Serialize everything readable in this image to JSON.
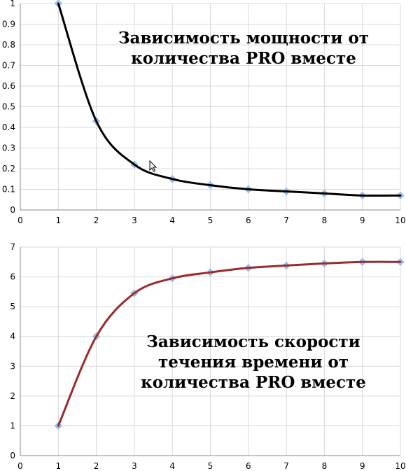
{
  "chart_data": [
    {
      "type": "scatter",
      "title_lines": [
        "Зависимость мощности от",
        "количества PRO вместе"
      ],
      "xlabel": "",
      "ylabel": "",
      "xlim": [
        0,
        10
      ],
      "ylim": [
        0,
        1
      ],
      "grid": true,
      "x_ticks": [
        "0",
        "1",
        "2",
        "3",
        "4",
        "5",
        "6",
        "7",
        "8",
        "9",
        "10"
      ],
      "y_ticks": [
        "0",
        "0.1",
        "0.2",
        "0.3",
        "0.4",
        "0.5",
        "0.6",
        "0.7",
        "0.8",
        "0.9",
        "1"
      ],
      "series": [
        {
          "x": [
            1,
            2,
            3,
            4,
            5,
            6,
            7,
            8,
            9,
            10
          ],
          "y": [
            1.0,
            0.43,
            0.22,
            0.15,
            0.12,
            0.1,
            0.09,
            0.08,
            0.07,
            0.07
          ],
          "marker": "diamond",
          "marker_color": "#9fc5ee",
          "line_color": "#000000",
          "smooth": true
        }
      ]
    },
    {
      "type": "scatter",
      "title_lines": [
        "Зависимость скорости",
        "течения времени от",
        "количества PRO вместе"
      ],
      "xlabel": "",
      "ylabel": "",
      "xlim": [
        0,
        10
      ],
      "ylim": [
        0,
        7
      ],
      "grid": true,
      "x_ticks": [
        "0",
        "1",
        "2",
        "3",
        "4",
        "5",
        "6",
        "7",
        "8",
        "9",
        "10"
      ],
      "y_ticks": [
        "0",
        "1",
        "2",
        "3",
        "4",
        "5",
        "6",
        "7"
      ],
      "series": [
        {
          "x": [
            1,
            2,
            3,
            4,
            5,
            6,
            7,
            8,
            9,
            10
          ],
          "y": [
            1.0,
            4.0,
            5.45,
            5.95,
            6.15,
            6.3,
            6.38,
            6.45,
            6.5,
            6.5
          ],
          "marker": "diamond",
          "marker_color": "#9fc5ee",
          "line_color": "#9b2b2b",
          "smooth": true
        }
      ]
    }
  ]
}
